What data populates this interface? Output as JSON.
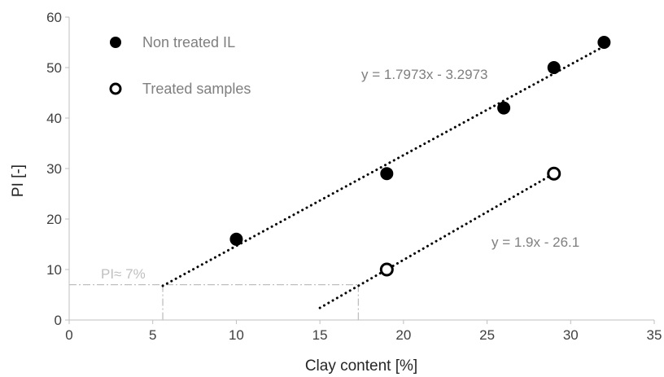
{
  "chart_data": {
    "type": "scatter",
    "xlabel": "Clay content [%]",
    "ylabel": "PI [-]",
    "xlim": [
      0,
      35
    ],
    "ylim": [
      0,
      60
    ],
    "xticks": [
      0,
      5,
      10,
      15,
      20,
      25,
      30,
      35
    ],
    "yticks": [
      0,
      10,
      20,
      30,
      40,
      50,
      60
    ],
    "grid": false,
    "legend_position": "top-left",
    "series": [
      {
        "name": "Non treated IL",
        "marker": "filled-circle",
        "color": "#000000",
        "points": [
          [
            10,
            16
          ],
          [
            19,
            29
          ],
          [
            26,
            42
          ],
          [
            29,
            50
          ],
          [
            32,
            55
          ]
        ],
        "trendline": {
          "equation": "y = 1.7973x - 3.2973",
          "slope": 1.7973,
          "intercept": -3.2973,
          "x_range": [
            5.6,
            32
          ],
          "style": "dotted"
        }
      },
      {
        "name": "Treated samples",
        "marker": "open-circle",
        "color": "#000000",
        "points": [
          [
            19,
            10
          ],
          [
            29,
            29
          ]
        ],
        "trendline": {
          "equation": "y = 1.9x - 26.1",
          "slope": 1.9,
          "intercept": -26.1,
          "x_range": [
            15,
            29
          ],
          "style": "dotted"
        }
      }
    ],
    "annotations": [
      {
        "text": "PI≈ 7%",
        "y": 7,
        "x_points": [
          5.6,
          17.3
        ],
        "style": "dash-dot",
        "color": "#bfbfbf"
      }
    ]
  }
}
